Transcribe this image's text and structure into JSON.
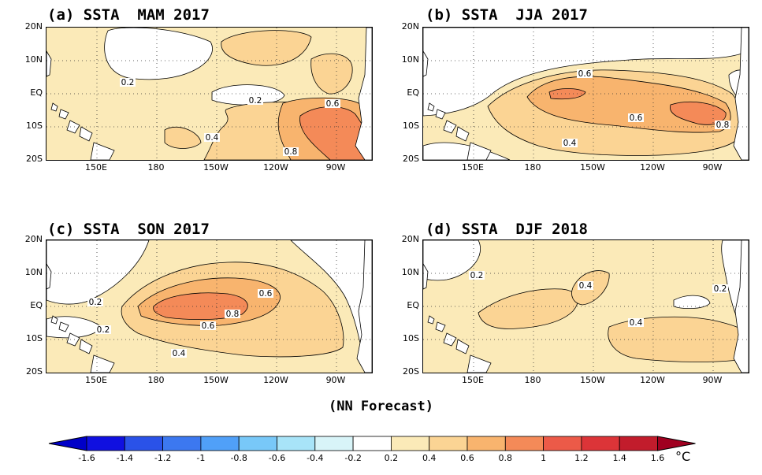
{
  "panels": [
    {
      "id": "a",
      "title": "(a) SSTA  MAM 2017",
      "contour_labels": [
        "0.2",
        "0.2",
        "0.4",
        "0.6",
        "0.8"
      ]
    },
    {
      "id": "b",
      "title": "(b) SSTA  JJA 2017",
      "contour_labels": [
        "0.6",
        "0.6",
        "0.4",
        "0.8"
      ]
    },
    {
      "id": "c",
      "title": "(c) SSTA  SON 2017",
      "contour_labels": [
        "0.2",
        "0.2",
        "0.6",
        "0.8",
        "0.6",
        "0.4"
      ]
    },
    {
      "id": "d",
      "title": "(d) SSTA  DJF 2018",
      "contour_labels": [
        "0.2",
        "0.4",
        "0.2",
        "0.4"
      ]
    }
  ],
  "lat_ticks": [
    "20N",
    "10N",
    "EQ",
    "10S",
    "20S"
  ],
  "lon_ticks": [
    "150E",
    "180",
    "150W",
    "120W",
    "90W"
  ],
  "footer": "(NN Forecast)",
  "colorbar": {
    "labels": [
      "-1.6",
      "-1.4",
      "-1.2",
      "-1",
      "-0.8",
      "-0.6",
      "-0.4",
      "-0.2",
      "0.2",
      "0.4",
      "0.6",
      "0.8",
      "1",
      "1.2",
      "1.4",
      "1.6"
    ],
    "colors": [
      "#1010e0",
      "#2a52e8",
      "#3c78f0",
      "#50a0f8",
      "#78c8f8",
      "#a8e4f8",
      "#d8f4f8",
      "#ffffff",
      "#fbeab8",
      "#fbd494",
      "#f8b46e",
      "#f48a58",
      "#ec5a48",
      "#dc3438",
      "#c21c2c"
    ],
    "low_color": "#0000c8",
    "high_color": "#a00020",
    "unit": "°C"
  }
}
